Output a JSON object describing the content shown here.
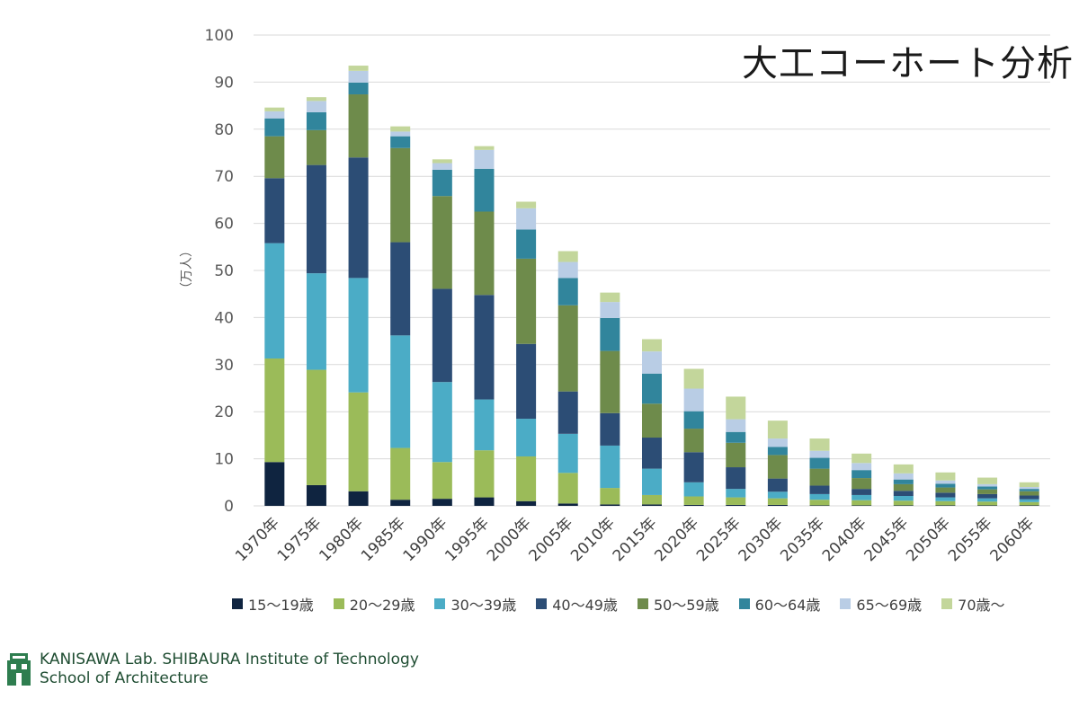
{
  "chart_data": {
    "type": "bar",
    "stacked": true,
    "title": "大工コーホート分析",
    "ylabel": "（万人）",
    "xlabel": "",
    "ylim": [
      0,
      100
    ],
    "yticks": [
      0,
      10,
      20,
      30,
      40,
      50,
      60,
      70,
      80,
      90,
      100
    ],
    "grid": true,
    "legend_position": "bottom",
    "categories": [
      "1970年",
      "1975年",
      "1980年",
      "1985年",
      "1990年",
      "1995年",
      "2000年",
      "2005年",
      "2010年",
      "2015年",
      "2020年",
      "2025年",
      "2030年",
      "2035年",
      "2040年",
      "2045年",
      "2050年",
      "2055年",
      "2060年"
    ],
    "series": [
      {
        "name": "15～19歳",
        "color": "#0f2440",
        "values": [
          9.3,
          4.4,
          3.1,
          1.3,
          1.5,
          1.8,
          1.0,
          0.5,
          0.3,
          0.3,
          0.2,
          0.2,
          0.2,
          0.1,
          0.1,
          0.1,
          0.1,
          0.1,
          0.1
        ]
      },
      {
        "name": "20～29歳",
        "color": "#9bbb59",
        "values": [
          22.0,
          24.5,
          21.0,
          11.0,
          7.8,
          10.0,
          9.5,
          6.5,
          3.5,
          2.0,
          1.8,
          1.6,
          1.4,
          1.2,
          1.1,
          1.0,
          0.9,
          0.8,
          0.7
        ]
      },
      {
        "name": "30～39歳",
        "color": "#4bacc6",
        "values": [
          24.5,
          20.5,
          24.3,
          23.9,
          17.0,
          10.8,
          8.0,
          8.3,
          9.0,
          5.6,
          3.0,
          1.8,
          1.4,
          1.2,
          1.1,
          1.0,
          0.8,
          0.7,
          0.6
        ]
      },
      {
        "name": "40～49歳",
        "color": "#2c4d75",
        "values": [
          13.8,
          23.0,
          25.6,
          19.8,
          19.8,
          22.2,
          15.9,
          9.0,
          6.9,
          6.6,
          6.4,
          4.6,
          2.8,
          1.8,
          1.3,
          1.1,
          1.0,
          0.9,
          0.8
        ]
      },
      {
        "name": "50～59歳",
        "color": "#6e8b4b",
        "values": [
          8.9,
          7.4,
          13.4,
          20.0,
          19.7,
          17.7,
          18.1,
          18.3,
          13.2,
          7.2,
          5.0,
          5.2,
          5.0,
          3.6,
          2.3,
          1.4,
          1.1,
          1.0,
          0.9
        ]
      },
      {
        "name": "60～64歳",
        "color": "#31859c",
        "values": [
          3.8,
          3.8,
          2.5,
          2.5,
          5.6,
          9.1,
          6.2,
          5.8,
          7.0,
          6.4,
          3.7,
          2.3,
          1.7,
          2.3,
          1.7,
          1.0,
          0.8,
          0.6,
          0.5
        ]
      },
      {
        "name": "65～69歳",
        "color": "#b9cde5",
        "values": [
          1.5,
          2.4,
          2.5,
          1.0,
          1.4,
          4.0,
          4.5,
          3.4,
          3.4,
          4.7,
          4.8,
          2.7,
          1.8,
          1.5,
          1.5,
          1.3,
          0.7,
          0.5,
          0.4
        ]
      },
      {
        "name": "70歳～",
        "color": "#c3d69b",
        "values": [
          0.8,
          0.8,
          1.1,
          1.1,
          0.8,
          0.8,
          1.4,
          2.3,
          2.0,
          2.6,
          4.2,
          4.8,
          3.8,
          2.6,
          2.0,
          1.9,
          1.7,
          1.4,
          1.0
        ]
      }
    ]
  },
  "footer": {
    "line1": "KANISAWA Lab. SHIBAURA Institute of  Technology",
    "line2": "School of Architecture"
  }
}
